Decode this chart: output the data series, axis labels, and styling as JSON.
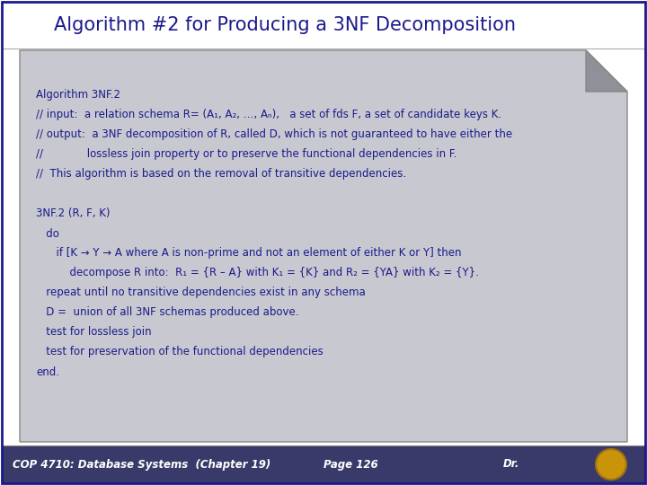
{
  "title": "Algorithm #2 for Producing a 3NF Decomposition",
  "title_color": "#1a1a8c",
  "title_fontsize": 15,
  "bg_color": "#ffffff",
  "outer_border_color": "#1a1a8c",
  "card_color": "#c8c8d0",
  "card_border_color": "#888888",
  "footer_bg": "#3a3a6a",
  "footer_text_color": "#ffffff",
  "footer_left": "COP 4710: Database Systems  (Chapter 19)",
  "footer_middle": "Page 126",
  "footer_right": "Dr.",
  "text_color": "#1a1a8c",
  "text_fontsize": 8.5,
  "content_lines": [
    "Algorithm 3NF.2",
    "// input:  a relation schema R= (A₁, A₂, …, Aₙ),   a set of fds F, a set of candidate keys K.",
    "// output:  a 3NF decomposition of R, called D, which is not guaranteed to have either the",
    "//             lossless join property or to preserve the functional dependencies in F.",
    "//  This algorithm is based on the removal of transitive dependencies.",
    "",
    "3NF.2 (R, F, K)",
    "   do",
    "      if [K → Y → A where A is non-prime and not an element of either K or Y] then",
    "          decompose R into:  R₁ = {R – A} with K₁ = {K} and R₂ = {YA} with K₂ = {Y}.",
    "   repeat until no transitive dependencies exist in any schema",
    "   D =  union of all 3NF schemas produced above.",
    "   test for lossless join",
    "   test for preservation of the functional dependencies",
    "end."
  ]
}
